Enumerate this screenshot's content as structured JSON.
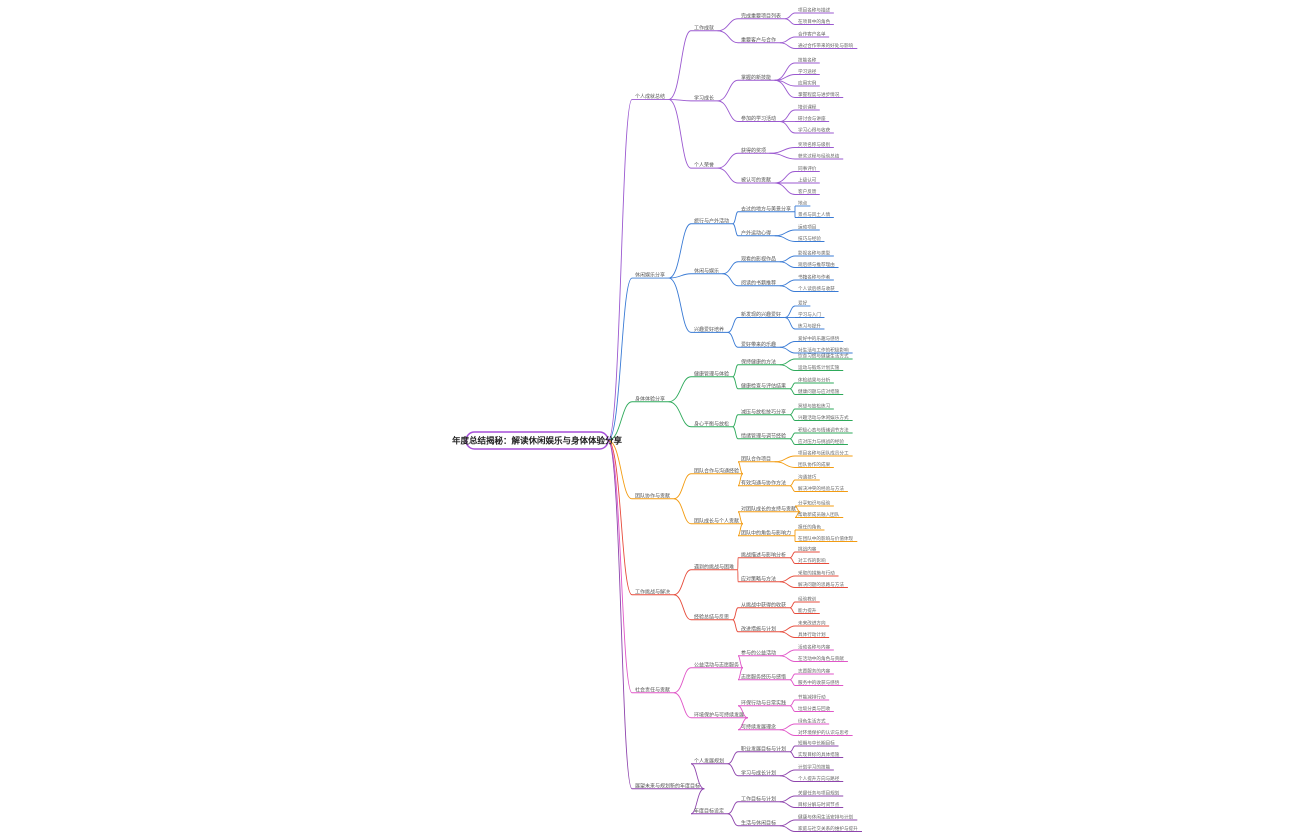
{
  "root": "年度总结揭秘：解读休闲娱乐与身体体验分享",
  "branches": [
    {
      "label": "个人成就总结",
      "color": "#9b59d0",
      "children": [
        {
          "label": "工作成就",
          "children": [
            {
              "label": "完成重要项目列表",
              "children": [
                "项目名称与描述",
                "在项目中的角色"
              ]
            },
            {
              "label": "重要客户与合作",
              "children": [
                "合作客户名单",
                "通过合作带来的好处与影响"
              ]
            }
          ]
        },
        {
          "label": "学习成长",
          "children": [
            {
              "label": "掌握的新技能",
              "children": [
                "技能名称",
                "学习途径",
                "应用实例",
                "掌握程度与进步情况"
              ]
            },
            {
              "label": "参加的学习活动",
              "children": [
                "培训课程",
                "研讨会与讲座",
                "学习心得与收获"
              ]
            }
          ]
        },
        {
          "label": "个人荣誉",
          "children": [
            {
              "label": "获得的奖项",
              "children": [
                "奖项名称与级别",
                "获奖过程与经验总结"
              ]
            },
            {
              "label": "被认可的贡献",
              "children": [
                "同事评价",
                "上级认可",
                "客户反馈"
              ]
            }
          ]
        }
      ]
    },
    {
      "label": "休闲娱乐分享",
      "color": "#3a7bd5",
      "children": [
        {
          "label": "旅行与户外活动",
          "children": [
            {
              "label": "去过的地方与美景分享",
              "children": [
                "地点",
                "景点与风土人情"
              ]
            },
            {
              "label": "户外运动心得",
              "children": [
                "运动项目",
                "技巧与经验"
              ]
            }
          ]
        },
        {
          "label": "休闲与娱乐",
          "children": [
            {
              "label": "观看的影视作品",
              "children": [
                "影视名称与类型",
                "观后感与推荐理由"
              ]
            },
            {
              "label": "阅读的书籍推荐",
              "children": [
                "书籍名称与作者",
                "个人读后感与收获"
              ]
            }
          ]
        },
        {
          "label": "兴趣爱好培养",
          "children": [
            {
              "label": "新发现的兴趣爱好",
              "children": [
                "爱好",
                "学习与入门",
                "练习与提升"
              ]
            },
            {
              "label": "爱好带来的乐趣",
              "children": [
                "爱好中的乐趣与感悟",
                "对生活与工作的积极影响"
              ]
            }
          ]
        }
      ]
    },
    {
      "label": "身体体验分享",
      "color": "#2eaa5b",
      "children": [
        {
          "label": "健康管理与体验",
          "children": [
            {
              "label": "保持健康的方法",
              "children": [
                "饮食习惯与健康生活方式",
                "运动与锻炼计划实施"
              ]
            },
            {
              "label": "健康检查与评估结果",
              "children": [
                "体检结果与分析",
                "健康问题与应对措施"
              ]
            }
          ]
        },
        {
          "label": "身心平衡与放松",
          "children": [
            {
              "label": "减压与放松技巧分享",
              "children": [
                "冥想与放松练习",
                "兴趣活动与休闲娱乐方式"
              ]
            },
            {
              "label": "情绪管理与调节经验",
              "children": [
                "积极心态与情绪调节方法",
                "应对压力与挑战的经验"
              ]
            }
          ]
        }
      ]
    },
    {
      "label": "团队协作与贡献",
      "color": "#f39c12",
      "children": [
        {
          "label": "团队合作与沟通经验",
          "children": [
            {
              "label": "团队合作项目",
              "children": [
                "项目名称与团队成员分工",
                "团队协作的成果"
              ]
            },
            {
              "label": "有效沟通与协作方法",
              "children": [
                "沟通技巧",
                "解决冲突的经验与方法"
              ]
            }
          ]
        },
        {
          "label": "团队成长与个人贡献",
          "children": [
            {
              "label": "对团队成长的支持与贡献",
              "children": [
                "分享知识与经验",
                "帮助新成员融入团队"
              ]
            },
            {
              "label": "团队中的角色与影响力",
              "children": [
                "担任的角色",
                "在团队中的影响与价值体现"
              ]
            }
          ]
        }
      ]
    },
    {
      "label": "工作挑战与解决",
      "color": "#e74c3c",
      "children": [
        {
          "label": "遇到的挑战与困难",
          "children": [
            {
              "label": "挑战描述与影响分析",
              "children": [
                "挑战内容",
                "对工作的影响"
              ]
            },
            {
              "label": "应对策略与方法",
              "children": [
                "采取的措施与行动",
                "解决问题的思路与方法"
              ]
            }
          ]
        },
        {
          "label": "经验总结与反思",
          "children": [
            {
              "label": "从挑战中获得的收获",
              "children": [
                "经验教训",
                "能力提升"
              ]
            },
            {
              "label": "改进措施与计划",
              "children": [
                "未来改进方向",
                "具体行动计划"
              ]
            }
          ]
        }
      ]
    },
    {
      "label": "社会责任与贡献",
      "color": "#e056c8",
      "children": [
        {
          "label": "公益活动与志愿服务",
          "children": [
            {
              "label": "参与的公益活动",
              "children": [
                "活动名称与内容",
                "在活动中的角色与贡献"
              ]
            },
            {
              "label": "志愿服务经历与感悟",
              "children": [
                "志愿服务的内容",
                "服务中的收获与感悟"
              ]
            }
          ]
        },
        {
          "label": "环境保护与可持续发展",
          "children": [
            {
              "label": "环保行动与日常实践",
              "children": [
                "节能减排行动",
                "垃圾分类与回收"
              ]
            },
            {
              "label": "可持续发展理念",
              "children": [
                "绿色生活方式",
                "对环境保护的认识与思考"
              ]
            }
          ]
        }
      ]
    },
    {
      "label": "展望未来与规划新的年度目标",
      "color": "#8e44ad",
      "children": [
        {
          "label": "个人发展规划",
          "children": [
            {
              "label": "职业发展目标与计划",
              "children": [
                "短期与中长期目标",
                "实现目标的具体措施"
              ]
            },
            {
              "label": "学习与成长计划",
              "children": [
                "计划学习的技能",
                "个人提升方向与路径"
              ]
            }
          ]
        },
        {
          "label": "年度目标设定",
          "children": [
            {
              "label": "工作目标与计划",
              "children": [
                "关键任务与项目规划",
                "目标分解与时间节点"
              ]
            },
            {
              "label": "生活与休闲目标",
              "children": [
                "健康与休闲生活安排与计划",
                "家庭与社交关系的维护与提升"
              ]
            }
          ]
        }
      ]
    }
  ]
}
